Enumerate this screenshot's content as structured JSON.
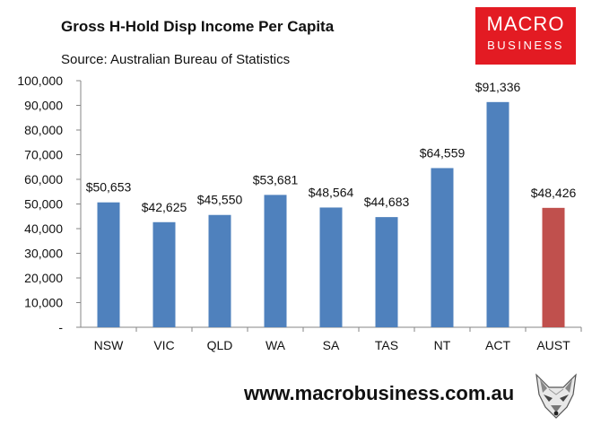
{
  "header": {
    "title": "Gross H-Hold Disp Income Per Capita",
    "source": "Source: Australian Bureau of Statistics"
  },
  "logo": {
    "line1": "MACRO",
    "line2": "BUSINESS"
  },
  "footer": {
    "website": "www.macrobusiness.com.au"
  },
  "colors": {
    "bar": "#4f81bd",
    "highlight": "#c0504d",
    "logo_bg": "#e31b23"
  },
  "chart_data": {
    "type": "bar",
    "title": "Gross H-Hold Disp Income Per Capita",
    "categories": [
      "NSW",
      "VIC",
      "QLD",
      "WA",
      "SA",
      "TAS",
      "NT",
      "ACT",
      "AUST"
    ],
    "values": [
      50653,
      42625,
      45550,
      53681,
      48564,
      44683,
      64559,
      91336,
      48426
    ],
    "data_labels": [
      "$50,653",
      "$42,625",
      "$45,550",
      "$53,681",
      "$48,564",
      "$44,683",
      "$64,559",
      "$91,336",
      "$48,426"
    ],
    "highlight_categories": [
      "AUST"
    ],
    "ylim": [
      0,
      100000
    ],
    "yticks": [
      0,
      10000,
      20000,
      30000,
      40000,
      50000,
      60000,
      70000,
      80000,
      90000,
      100000
    ],
    "ytick_labels": [
      "-",
      "10,000",
      "20,000",
      "30,000",
      "40,000",
      "50,000",
      "60,000",
      "70,000",
      "80,000",
      "90,000",
      "100,000"
    ],
    "xlabel": "",
    "ylabel": "",
    "grid": false,
    "legend": "none"
  }
}
